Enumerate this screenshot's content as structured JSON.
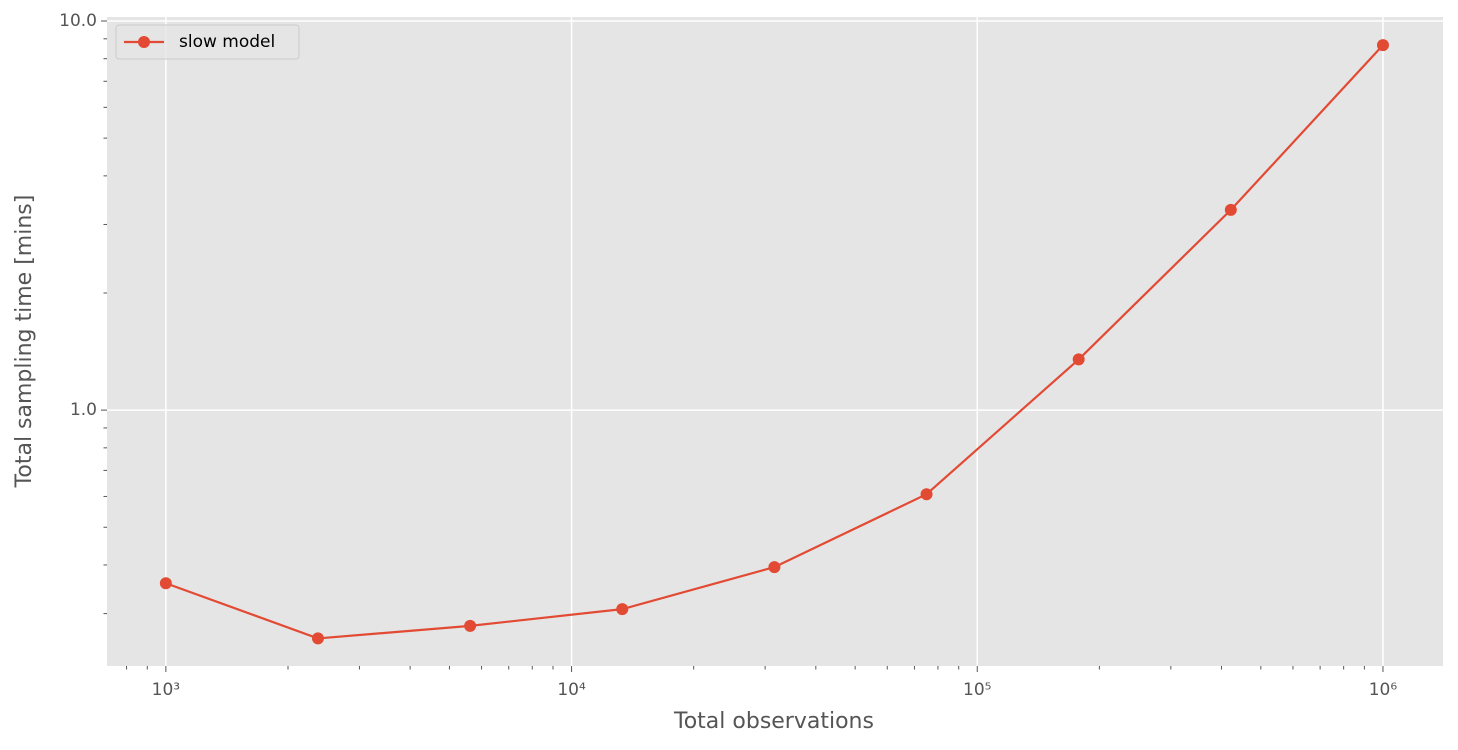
{
  "chart_data": {
    "type": "line",
    "x_label": "Total observations",
    "y_label": "Total sampling time [mins]",
    "x": [
      1000,
      2371,
      5623,
      13335,
      31623,
      74989,
      177828,
      421697,
      1000000
    ],
    "series": [
      {
        "name": "slow model",
        "color": "#e24a33",
        "values": [
          0.359,
          0.259,
          0.279,
          0.308,
          0.395,
          0.608,
          1.35,
          3.27,
          8.67
        ]
      }
    ],
    "x_log": true,
    "y_log": true,
    "xlim": [
      716,
      1406000
    ],
    "ylim": [
      0.22,
      10.24
    ],
    "xticks": [
      {
        "value": 1000,
        "label": "10³"
      },
      {
        "value": 10000,
        "label": "10⁴"
      },
      {
        "value": 100000,
        "label": "10⁵"
      },
      {
        "value": 1000000,
        "label": "10⁶"
      }
    ],
    "yticks": [
      {
        "value": 1,
        "label": "1.0"
      },
      {
        "value": 10,
        "label": "10.0"
      }
    ],
    "x_minor_ticks": [
      800,
      900,
      2000,
      3000,
      4000,
      5000,
      6000,
      7000,
      8000,
      9000,
      20000,
      30000,
      40000,
      50000,
      60000,
      70000,
      80000,
      90000,
      200000,
      300000,
      400000,
      500000,
      600000,
      700000,
      800000,
      900000
    ],
    "y_minor_ticks": [
      0.3,
      0.4,
      0.5,
      0.6,
      0.7,
      0.8,
      0.9,
      2,
      3,
      4,
      5,
      6,
      7,
      8,
      9
    ],
    "grid": true,
    "legend": "upper left",
    "background": "#e5e5e5"
  }
}
